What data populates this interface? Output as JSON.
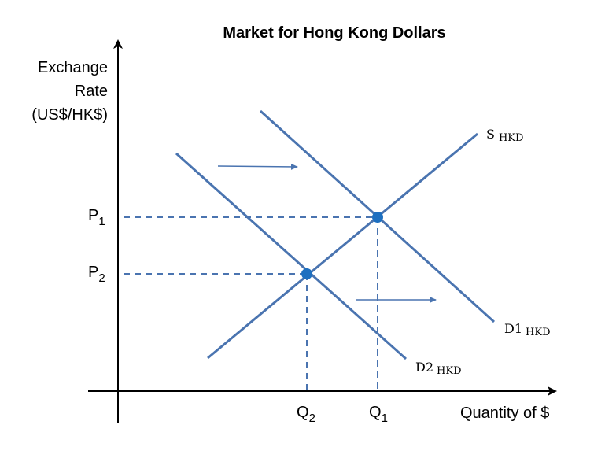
{
  "title": "Market for Hong Kong Dollars",
  "y_axis": {
    "label_lines": [
      "Exchange",
      "Rate",
      "(US$/HK$)"
    ]
  },
  "x_axis": {
    "label": "Quantity of $"
  },
  "curves": {
    "supply": {
      "label": "S",
      "sub": "HKD"
    },
    "demand1": {
      "label": "D1",
      "sub": "HKD"
    },
    "demand2": {
      "label": "D2",
      "sub": "HKD"
    }
  },
  "prices": {
    "p1": {
      "base": "P",
      "sub": "1"
    },
    "p2": {
      "base": "P",
      "sub": "2"
    }
  },
  "quantities": {
    "q1": {
      "base": "Q",
      "sub": "1"
    },
    "q2": {
      "base": "Q",
      "sub": "2"
    }
  },
  "colors": {
    "line": "#4a74b0",
    "dashed": "#4a74b0",
    "point": "#1d6fc0",
    "axis": "#000000"
  }
}
